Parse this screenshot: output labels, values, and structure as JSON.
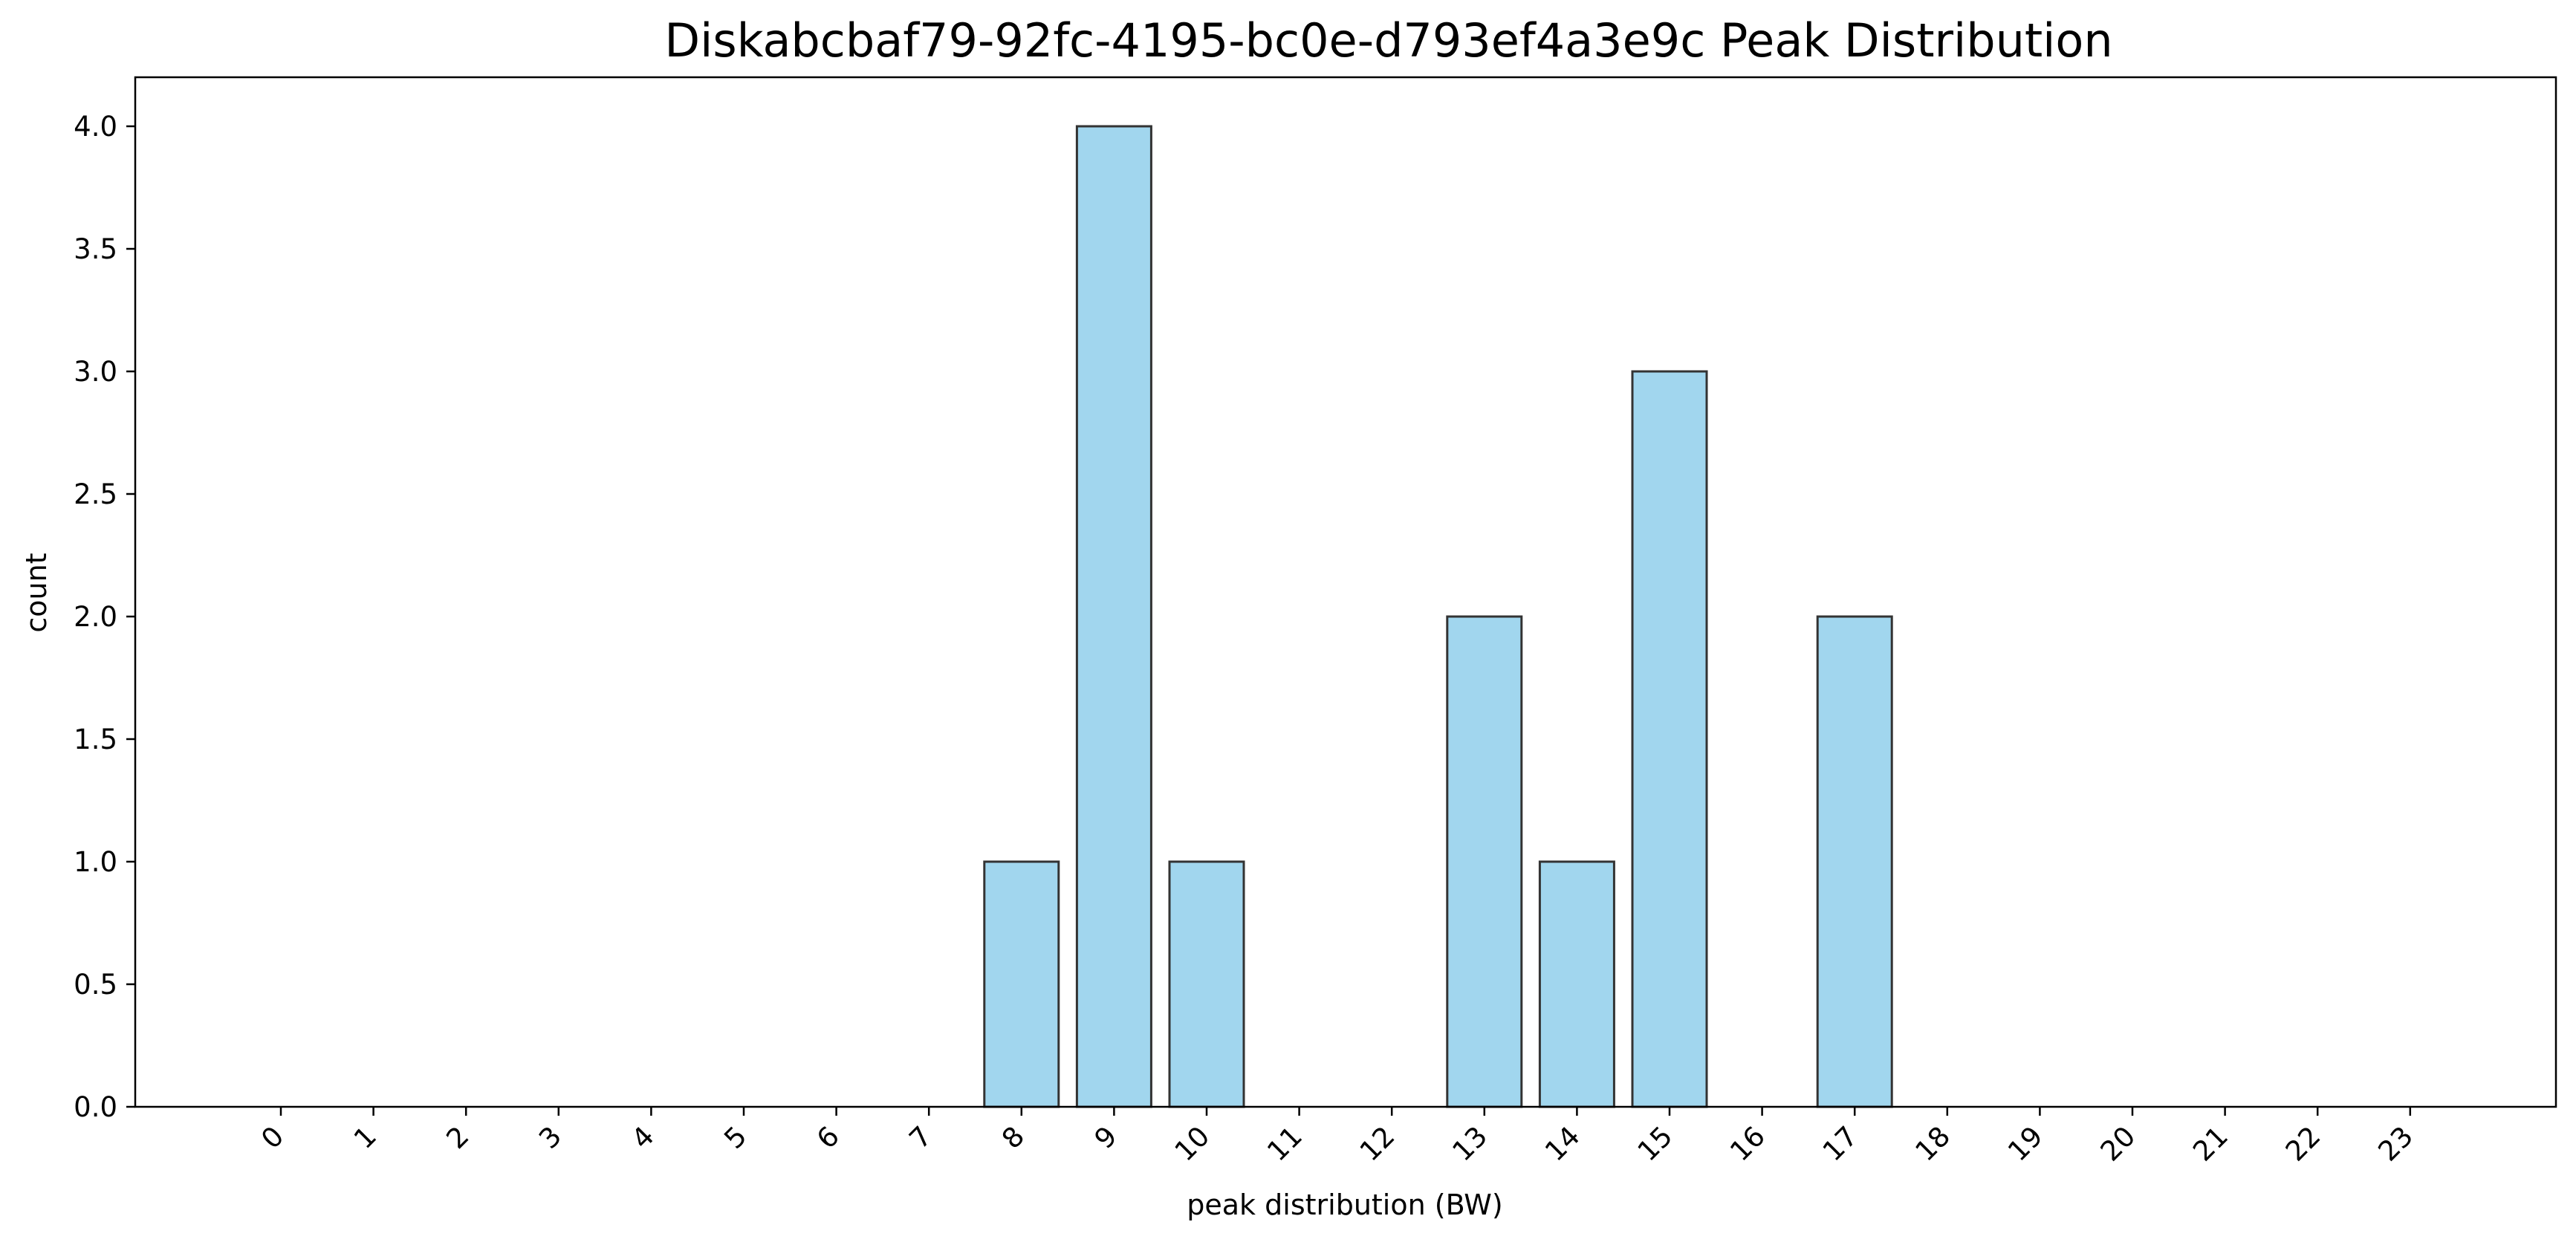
{
  "chart_data": {
    "type": "bar",
    "title": "Diskabcbaf79-92fc-4195-bc0e-d793ef4a3e9c Peak Distribution",
    "xlabel": "peak distribution (BW)",
    "ylabel": "count",
    "categories": [
      "0",
      "1",
      "2",
      "3",
      "4",
      "5",
      "6",
      "7",
      "8",
      "9",
      "10",
      "11",
      "12",
      "13",
      "14",
      "15",
      "16",
      "17",
      "18",
      "19",
      "20",
      "21",
      "22",
      "23"
    ],
    "values": [
      0,
      0,
      0,
      0,
      0,
      0,
      0,
      0,
      1,
      4,
      1,
      0,
      0,
      2,
      1,
      3,
      0,
      2,
      0,
      0,
      0,
      0,
      0,
      0
    ],
    "ylim": [
      0,
      4.2
    ],
    "yticks": [
      "0.0",
      "0.5",
      "1.0",
      "1.5",
      "2.0",
      "2.5",
      "3.0",
      "3.5",
      "4.0"
    ],
    "grid": false,
    "bar_color": "#a1d6ee",
    "bar_edge_color": "#333333"
  }
}
